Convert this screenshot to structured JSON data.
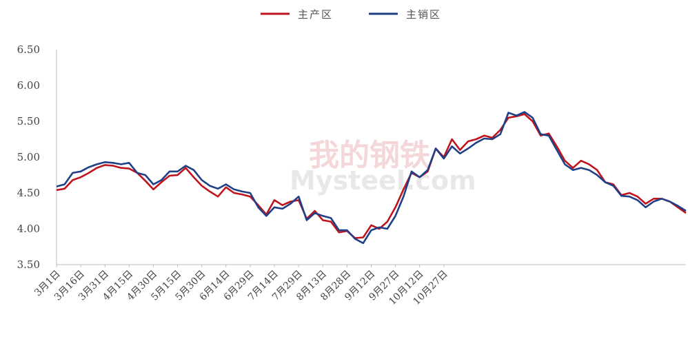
{
  "chart_data": {
    "type": "line",
    "title": "",
    "xlabel": "",
    "ylabel": "",
    "ylim": [
      3.5,
      6.5
    ],
    "yticks": [
      "3.50",
      "4.00",
      "4.50",
      "5.00",
      "5.50",
      "6.00",
      "6.50"
    ],
    "xticks": [
      "3月1日",
      "3月16日",
      "3月31日",
      "4月15日",
      "4月30日",
      "5月15日",
      "5月30日",
      "6月14日",
      "6月29日",
      "7月14日",
      "7月29日",
      "8月13日",
      "8月28日",
      "9月12日",
      "9月27日",
      "10月12日",
      "10月27日"
    ],
    "grid": false,
    "legend_position": "top-center",
    "x_index_range": [
      0,
      277
    ],
    "series": [
      {
        "name": "主产区",
        "color": "#C0141C",
        "points": [
          [
            0,
            4.54
          ],
          [
            5,
            4.56
          ],
          [
            10,
            4.68
          ],
          [
            15,
            4.72
          ],
          [
            20,
            4.78
          ],
          [
            25,
            4.85
          ],
          [
            30,
            4.89
          ],
          [
            35,
            4.88
          ],
          [
            40,
            4.85
          ],
          [
            45,
            4.84
          ],
          [
            50,
            4.78
          ],
          [
            55,
            4.67
          ],
          [
            60,
            4.55
          ],
          [
            65,
            4.65
          ],
          [
            70,
            4.74
          ],
          [
            75,
            4.75
          ],
          [
            80,
            4.85
          ],
          [
            85,
            4.72
          ],
          [
            90,
            4.6
          ],
          [
            95,
            4.52
          ],
          [
            100,
            4.45
          ],
          [
            105,
            4.58
          ],
          [
            110,
            4.5
          ],
          [
            115,
            4.48
          ],
          [
            120,
            4.45
          ],
          [
            125,
            4.33
          ],
          [
            130,
            4.2
          ],
          [
            135,
            4.4
          ],
          [
            140,
            4.33
          ],
          [
            145,
            4.38
          ],
          [
            150,
            4.4
          ],
          [
            155,
            4.14
          ],
          [
            160,
            4.25
          ],
          [
            165,
            4.12
          ],
          [
            170,
            4.1
          ],
          [
            175,
            3.95
          ],
          [
            180,
            3.97
          ],
          [
            185,
            3.87
          ],
          [
            190,
            3.88
          ],
          [
            195,
            4.05
          ],
          [
            200,
            4.0
          ],
          [
            205,
            4.1
          ],
          [
            210,
            4.3
          ],
          [
            215,
            4.55
          ],
          [
            220,
            4.78
          ],
          [
            225,
            4.72
          ],
          [
            230,
            4.8
          ],
          [
            235,
            5.12
          ],
          [
            240,
            5.0
          ],
          [
            245,
            5.25
          ],
          [
            250,
            5.1
          ],
          [
            255,
            5.22
          ],
          [
            260,
            5.25
          ],
          [
            265,
            5.3
          ],
          [
            270,
            5.27
          ],
          [
            275,
            5.38
          ],
          [
            280,
            5.55
          ],
          [
            285,
            5.57
          ],
          [
            290,
            5.6
          ],
          [
            295,
            5.5
          ],
          [
            300,
            5.3
          ],
          [
            305,
            5.33
          ],
          [
            310,
            5.15
          ],
          [
            315,
            4.95
          ],
          [
            320,
            4.85
          ],
          [
            325,
            4.95
          ],
          [
            330,
            4.9
          ],
          [
            335,
            4.82
          ],
          [
            340,
            4.65
          ],
          [
            345,
            4.62
          ],
          [
            350,
            4.47
          ],
          [
            355,
            4.5
          ],
          [
            360,
            4.45
          ],
          [
            365,
            4.35
          ],
          [
            370,
            4.42
          ],
          [
            375,
            4.42
          ],
          [
            380,
            4.38
          ],
          [
            385,
            4.3
          ],
          [
            390,
            4.22
          ]
        ]
      },
      {
        "name": "主销区",
        "color": "#1F3F86",
        "points": [
          [
            0,
            4.59
          ],
          [
            5,
            4.62
          ],
          [
            10,
            4.78
          ],
          [
            15,
            4.8
          ],
          [
            20,
            4.86
          ],
          [
            25,
            4.9
          ],
          [
            30,
            4.93
          ],
          [
            35,
            4.92
          ],
          [
            40,
            4.9
          ],
          [
            45,
            4.92
          ],
          [
            50,
            4.78
          ],
          [
            55,
            4.75
          ],
          [
            60,
            4.62
          ],
          [
            65,
            4.68
          ],
          [
            70,
            4.8
          ],
          [
            75,
            4.8
          ],
          [
            80,
            4.88
          ],
          [
            85,
            4.82
          ],
          [
            90,
            4.68
          ],
          [
            95,
            4.6
          ],
          [
            100,
            4.56
          ],
          [
            105,
            4.62
          ],
          [
            110,
            4.55
          ],
          [
            115,
            4.52
          ],
          [
            120,
            4.5
          ],
          [
            125,
            4.3
          ],
          [
            130,
            4.18
          ],
          [
            135,
            4.3
          ],
          [
            140,
            4.28
          ],
          [
            145,
            4.35
          ],
          [
            150,
            4.45
          ],
          [
            155,
            4.12
          ],
          [
            160,
            4.22
          ],
          [
            165,
            4.18
          ],
          [
            170,
            4.15
          ],
          [
            175,
            3.98
          ],
          [
            180,
            3.98
          ],
          [
            185,
            3.86
          ],
          [
            190,
            3.8
          ],
          [
            195,
            3.98
          ],
          [
            200,
            4.02
          ],
          [
            205,
            4.0
          ],
          [
            210,
            4.18
          ],
          [
            215,
            4.45
          ],
          [
            220,
            4.8
          ],
          [
            225,
            4.72
          ],
          [
            230,
            4.82
          ],
          [
            235,
            5.12
          ],
          [
            240,
            4.98
          ],
          [
            245,
            5.15
          ],
          [
            250,
            5.05
          ],
          [
            255,
            5.12
          ],
          [
            260,
            5.2
          ],
          [
            265,
            5.26
          ],
          [
            270,
            5.25
          ],
          [
            275,
            5.32
          ],
          [
            280,
            5.62
          ],
          [
            285,
            5.58
          ],
          [
            290,
            5.63
          ],
          [
            295,
            5.55
          ],
          [
            300,
            5.32
          ],
          [
            305,
            5.3
          ],
          [
            310,
            5.1
          ],
          [
            315,
            4.9
          ],
          [
            320,
            4.82
          ],
          [
            325,
            4.85
          ],
          [
            330,
            4.82
          ],
          [
            335,
            4.75
          ],
          [
            340,
            4.65
          ],
          [
            345,
            4.6
          ],
          [
            350,
            4.46
          ],
          [
            355,
            4.45
          ],
          [
            360,
            4.4
          ],
          [
            365,
            4.3
          ],
          [
            370,
            4.38
          ],
          [
            375,
            4.42
          ],
          [
            380,
            4.38
          ],
          [
            385,
            4.32
          ],
          [
            390,
            4.25
          ]
        ]
      }
    ]
  },
  "watermark": {
    "top_text": "我的钢铁",
    "bottom_text": "Mysteel.com"
  }
}
